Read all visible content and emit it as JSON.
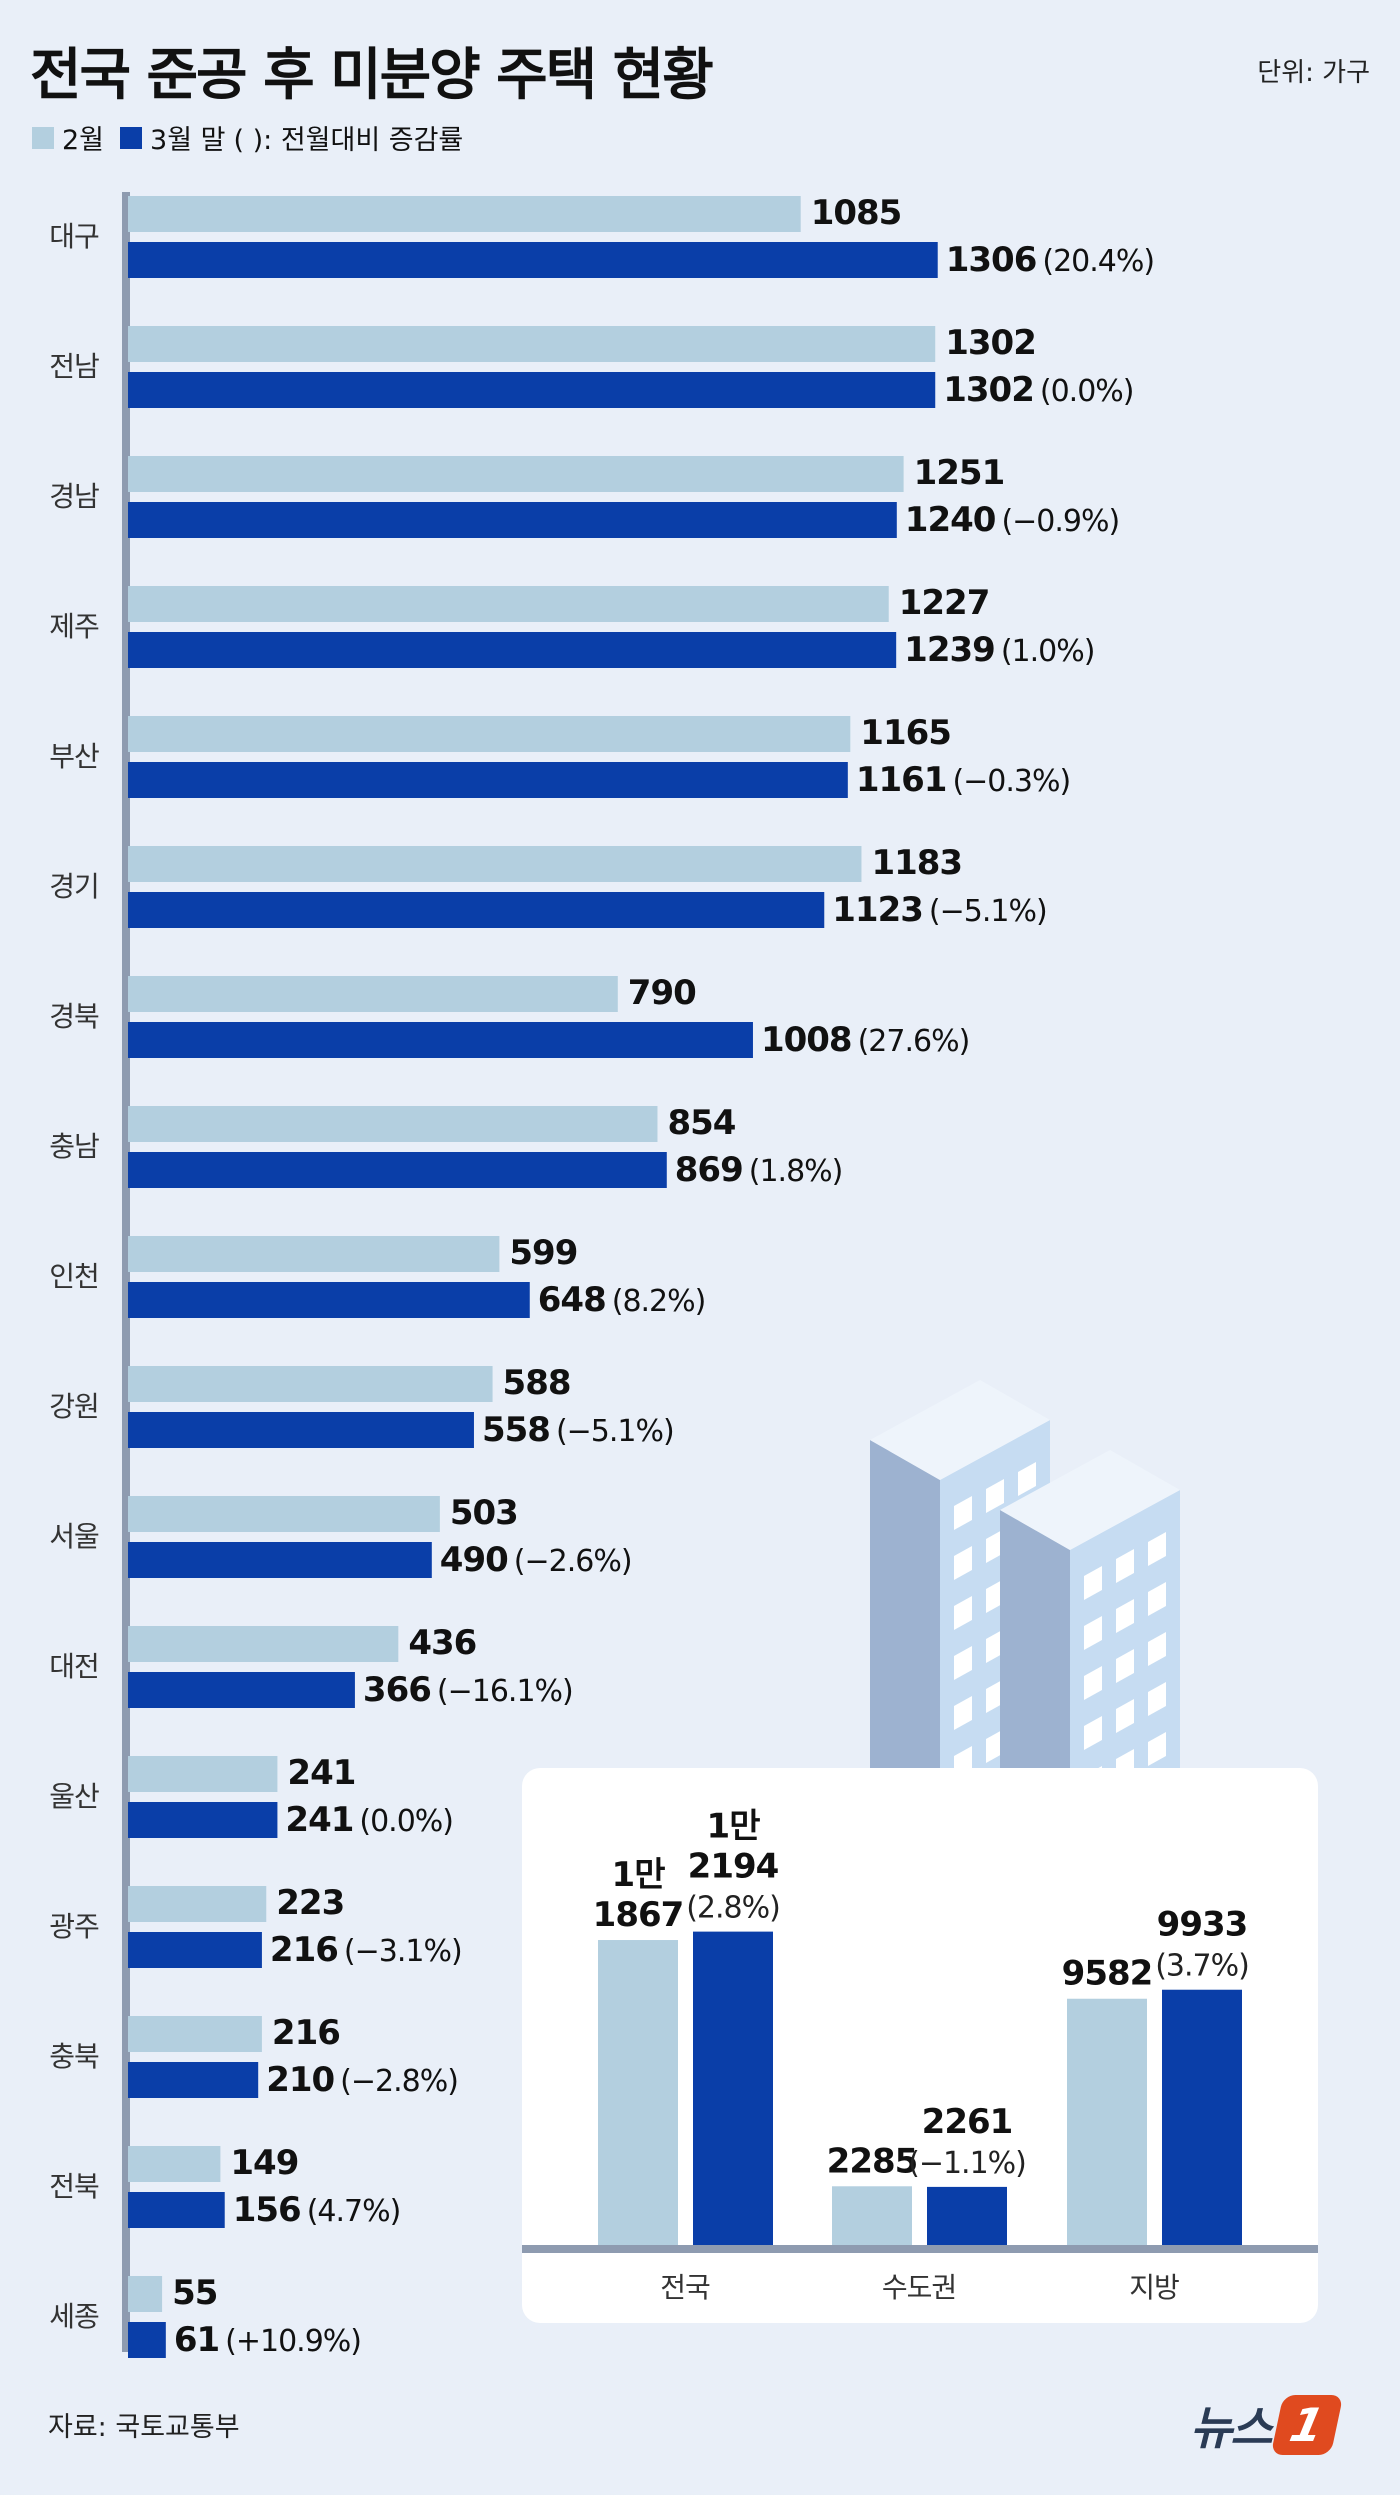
{
  "header": {
    "title": "전국 준공 후 미분양 주택 현황",
    "unit": "단위: 가구",
    "legend_feb": "2월",
    "legend_mar": "3월 말",
    "legend_note": "(  ): 전월대비 증감률"
  },
  "source": "자료: 국토교통부",
  "logo": {
    "text": "뉴스",
    "mark": "1"
  },
  "colors": {
    "feb": "#b3cfdf",
    "mar": "#0a3ea8",
    "background": "#e9eff8",
    "panel": "#ffffff"
  },
  "chart_data": [
    {
      "type": "bar",
      "orientation": "horizontal",
      "title": "전국 준공 후 미분양 주택 현황",
      "categories": [
        "대구",
        "전남",
        "경남",
        "제주",
        "부산",
        "경기",
        "경북",
        "충남",
        "인천",
        "강원",
        "서울",
        "대전",
        "울산",
        "광주",
        "충북",
        "전북",
        "세종"
      ],
      "series": [
        {
          "name": "2월",
          "values": [
            1085,
            1302,
            1251,
            1227,
            1165,
            1183,
            790,
            854,
            599,
            588,
            503,
            436,
            241,
            223,
            216,
            149,
            55
          ]
        },
        {
          "name": "3월 말",
          "values": [
            1306,
            1302,
            1240,
            1239,
            1161,
            1123,
            1008,
            869,
            648,
            558,
            490,
            366,
            241,
            216,
            210,
            156,
            61
          ]
        }
      ],
      "change_labels": [
        "(20.4%)",
        "(0.0%)",
        "(−0.9%)",
        "(1.0%)",
        "(−0.3%)",
        "(−5.1%)",
        "(27.6%)",
        "(1.8%)",
        "(8.2%)",
        "(−5.1%)",
        "(−2.6%)",
        "(−16.1%)",
        "(0.0%)",
        "(−3.1%)",
        "(−2.8%)",
        "(4.7%)",
        "(+10.9%)"
      ],
      "xlim": [
        0,
        1400
      ]
    },
    {
      "type": "bar",
      "orientation": "vertical",
      "categories": [
        "전국",
        "수도권",
        "지방"
      ],
      "series": [
        {
          "name": "2월",
          "values": [
            11867,
            2285,
            9582
          ],
          "labels": [
            "1만\n1867",
            "2285",
            "9582"
          ]
        },
        {
          "name": "3월 말",
          "values": [
            12194,
            2261,
            9933
          ],
          "labels": [
            "1만\n2194",
            "2261",
            "9933"
          ]
        }
      ],
      "change_labels": [
        "(2.8%)",
        "(−1.1%)",
        "(3.7%)"
      ],
      "ylim": [
        0,
        14000
      ]
    }
  ]
}
